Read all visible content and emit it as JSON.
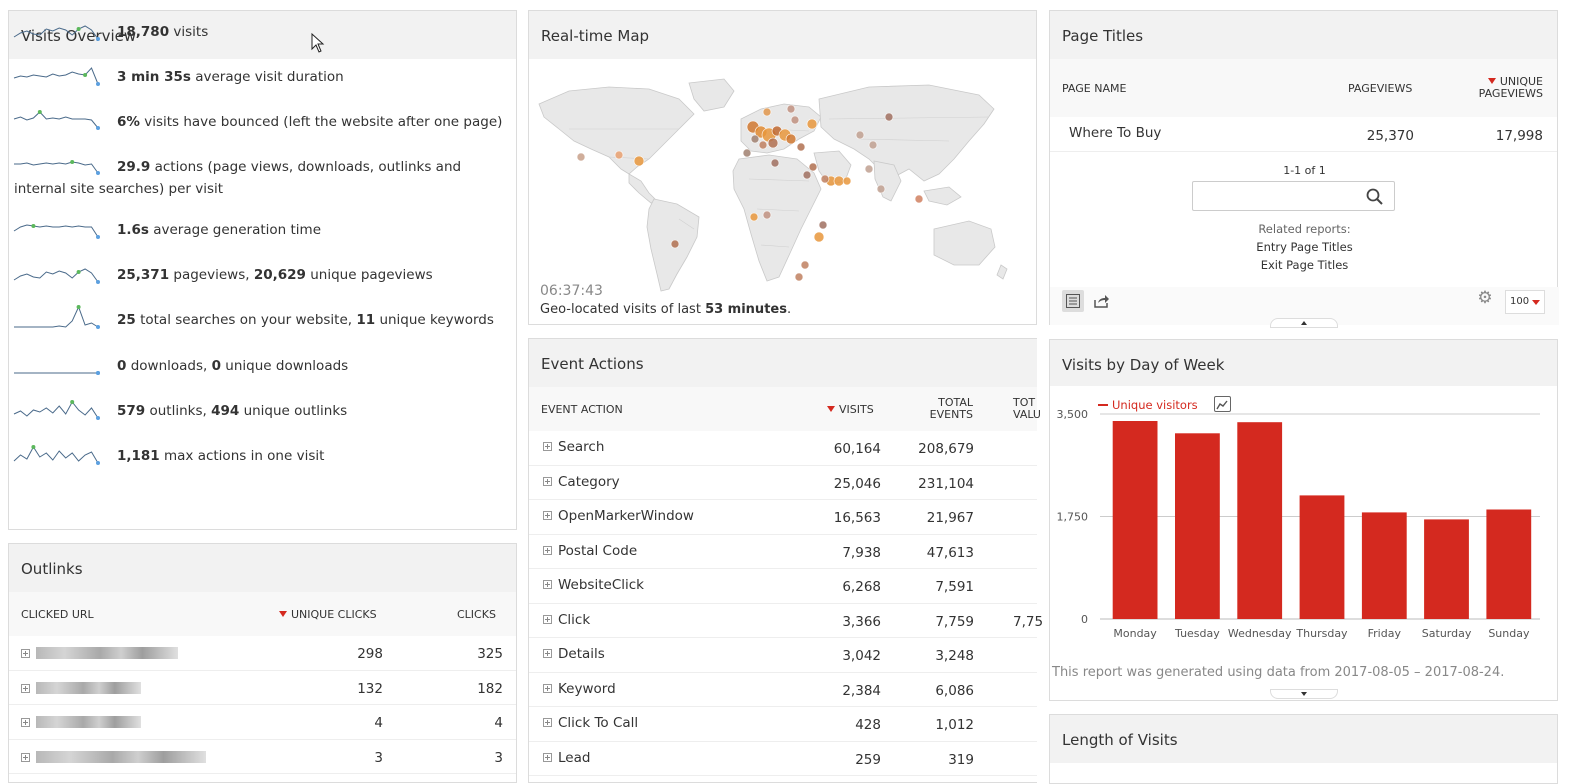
{
  "visits_overview": {
    "title": "Visits Overview",
    "rows": [
      {
        "pre": "",
        "b1": "18,780",
        "t1": " visits",
        "b2": "",
        "t2": ""
      },
      {
        "pre": "",
        "b1": "3 min 35s",
        "t1": " average visit duration",
        "b2": "",
        "t2": ""
      },
      {
        "pre": "",
        "b1": "6%",
        "t1": " visits have bounced (left the website after one page)",
        "b2": "",
        "t2": ""
      },
      {
        "pre": "",
        "b1": "29.9",
        "t1": " actions (page views, downloads, outlinks and internal site searches) per visit",
        "b2": "",
        "t2": ""
      },
      {
        "pre": "",
        "b1": "1.6s",
        "t1": " average generation time",
        "b2": "",
        "t2": ""
      },
      {
        "pre": "",
        "b1": "25,371",
        "t1": " pageviews, ",
        "b2": "20,629",
        "t2": " unique pageviews"
      },
      {
        "pre": "",
        "b1": "25",
        "t1": " total searches on your website, ",
        "b2": "11",
        "t2": " unique keywords"
      },
      {
        "pre": "",
        "b1": "0",
        "t1": " downloads, ",
        "b2": "0",
        "t2": " unique downloads"
      },
      {
        "pre": "",
        "b1": "579",
        "t1": " outlinks, ",
        "b2": "494",
        "t2": " unique outlinks"
      },
      {
        "pre": "",
        "b1": "1,181",
        "t1": " max actions in one visit",
        "b2": "",
        "t2": ""
      }
    ]
  },
  "outlinks": {
    "title": "Outlinks",
    "col_url": "CLICKED URL",
    "col_unique": "UNIQUE CLICKS",
    "col_clicks": "CLICKS",
    "rows": [
      {
        "unique": "298",
        "clicks": "325"
      },
      {
        "unique": "132",
        "clicks": "182"
      },
      {
        "unique": "4",
        "clicks": "4"
      },
      {
        "unique": "3",
        "clicks": "3"
      }
    ]
  },
  "realtime_map": {
    "title": "Real-time Map",
    "time": "06:37:43",
    "caption_pre": "Geo-located visits of last ",
    "caption_bold": "53 minutes",
    "caption_post": "."
  },
  "event_actions": {
    "title": "Event Actions",
    "col_action": "EVENT ACTION",
    "col_visits": "VISITS",
    "col_total": "TOTAL EVENTS",
    "col_value": "TOT VALU",
    "rows": [
      {
        "label": "Search",
        "visits": "60,164",
        "total": "208,679",
        "value": ""
      },
      {
        "label": "Category",
        "visits": "25,046",
        "total": "231,104",
        "value": ""
      },
      {
        "label": "OpenMarkerWindow",
        "visits": "16,563",
        "total": "21,967",
        "value": ""
      },
      {
        "label": "Postal Code",
        "visits": "7,938",
        "total": "47,613",
        "value": ""
      },
      {
        "label": "WebsiteClick",
        "visits": "6,268",
        "total": "7,591",
        "value": ""
      },
      {
        "label": "Click",
        "visits": "3,366",
        "total": "7,759",
        "value": "7,75"
      },
      {
        "label": "Details",
        "visits": "3,042",
        "total": "3,248",
        "value": ""
      },
      {
        "label": "Keyword",
        "visits": "2,384",
        "total": "6,086",
        "value": ""
      },
      {
        "label": "Click To Call",
        "visits": "428",
        "total": "1,012",
        "value": ""
      },
      {
        "label": "Lead",
        "visits": "259",
        "total": "319",
        "value": ""
      }
    ]
  },
  "page_titles": {
    "title": "Page Titles",
    "col_name": "PAGE NAME",
    "col_pageviews": "PAGEVIEWS",
    "col_unique1": "UNIQUE",
    "col_unique2": "PAGEVIEWS",
    "row": {
      "name": "Where To Buy",
      "pageviews": "25,370",
      "unique": "17,998"
    },
    "pagination": "1-1 of 1",
    "search_placeholder": "",
    "related_label": "Related reports:",
    "related": [
      "Entry Page Titles",
      "Exit Page Titles"
    ],
    "limit": "100"
  },
  "visits_by_day": {
    "title": "Visits by Day of Week",
    "legend": "Unique visitors",
    "footer": "This report was generated using data from 2017-08-05 – 2017-08-24.",
    "colors": {
      "bar": "#d4291f"
    }
  },
  "length_of_visits": {
    "title": "Length of Visits"
  },
  "chart_data": {
    "type": "bar",
    "categories": [
      "Monday",
      "Tuesday",
      "Wednesday",
      "Thursday",
      "Friday",
      "Saturday",
      "Sunday"
    ],
    "series": [
      {
        "name": "Unique visitors",
        "values": [
          3380,
          3170,
          3360,
          2110,
          1820,
          1700,
          1870
        ]
      }
    ],
    "yticks": [
      "0",
      "1,750",
      "3,500"
    ],
    "ylim": [
      0,
      3500
    ],
    "grid": true,
    "legend_position": "top-left"
  }
}
